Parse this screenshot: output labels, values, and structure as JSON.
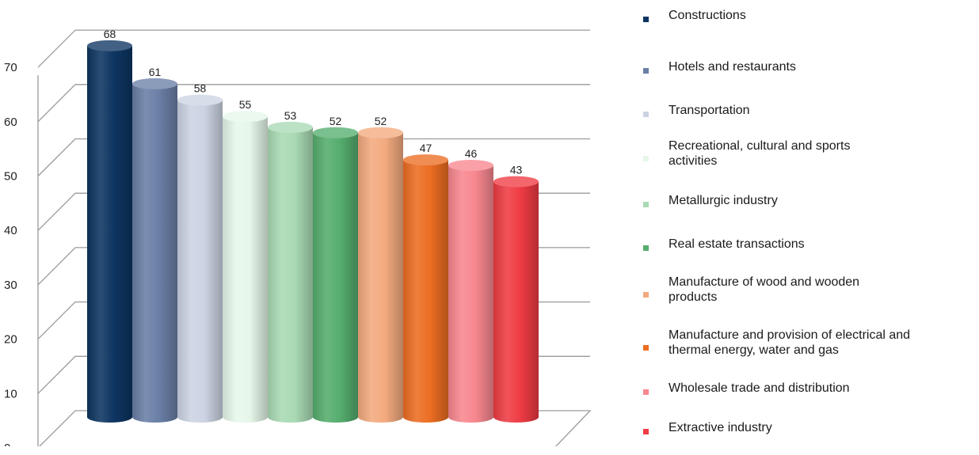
{
  "chart_data": {
    "type": "bar",
    "style": "3d-cylinder",
    "categories": [
      "Constructions",
      "Hotels and restaurants",
      "Transportation",
      "Recreational, cultural and sports activities",
      "Metallurgic industry",
      "Real estate transactions",
      "Manufacture of wood and wooden products",
      "Manufacture and provision of electrical and thermal energy, water and gas",
      "Wholesale trade and distribution",
      "Extractive industry"
    ],
    "values": [
      68,
      61,
      58,
      55,
      53,
      52,
      52,
      47,
      46,
      43
    ],
    "colors": [
      "#0d3561",
      "#6a7fa6",
      "#ccd3e3",
      "#e6f7ea",
      "#a9dab4",
      "#55ad6e",
      "#f3aa7f",
      "#ec6d22",
      "#f8878f",
      "#ef3b43"
    ],
    "ylim": [
      0,
      70
    ],
    "yticks": [
      0,
      10,
      20,
      30,
      40,
      50,
      60,
      70
    ],
    "grid": true,
    "legend_position": "right",
    "data_labels": true,
    "title": "",
    "xlabel": "",
    "ylabel": ""
  },
  "legend": {
    "items": [
      {
        "lines": [
          "Constructions"
        ]
      },
      {
        "lines": [
          "Hotels and restaurants"
        ]
      },
      {
        "lines": [
          "Transportation"
        ]
      },
      {
        "lines": [
          "Recreational, cultural and sports",
          "activities"
        ]
      },
      {
        "lines": [
          "Metallurgic industry"
        ]
      },
      {
        "lines": [
          "Real estate transactions"
        ]
      },
      {
        "lines": [
          "Manufacture of wood and wooden",
          "products"
        ]
      },
      {
        "lines": [
          "Manufacture and provision of electrical and",
          "thermal energy, water and gas"
        ]
      },
      {
        "lines": [
          "Wholesale trade and distribution"
        ]
      },
      {
        "lines": [
          "Extractive industry"
        ]
      }
    ]
  }
}
